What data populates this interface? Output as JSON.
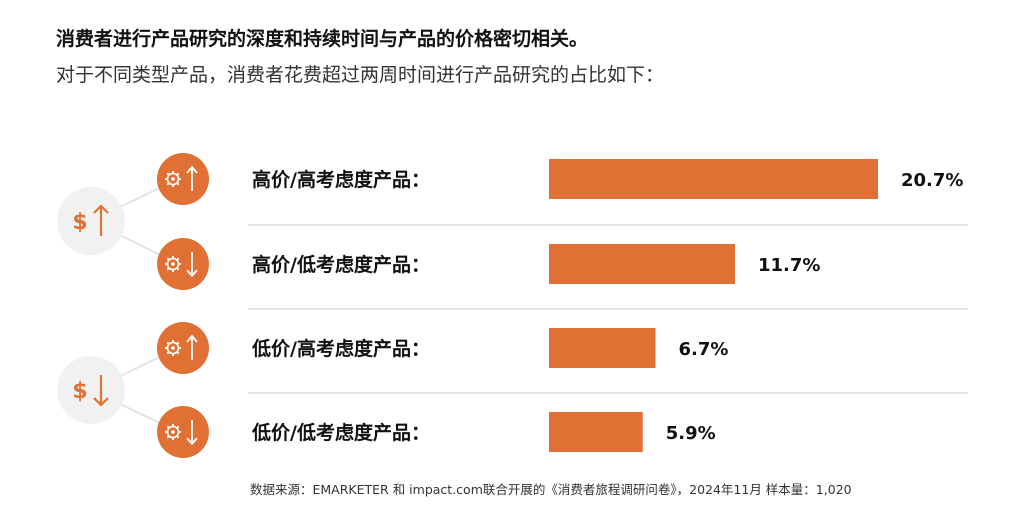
{
  "title": "消费者进行产品研究的深度和持续时间与产品的价格密切相关。",
  "subtitle": "对于不同类型产品，消费者花费超过两周时间进行产品研究的占比如下：",
  "source": "数据来源：EMARKETER 和 impact.com联合开展的《消费者旅程调研问卷》，2024年11月 样本量：1,020",
  "colors": {
    "bar": "#e07033",
    "accent": "#e07033",
    "icon_bg": "#f1f1f1",
    "separator": "#d9d9d9"
  },
  "icons": {
    "high_price": "dollar-up-arrow-icon",
    "low_price": "dollar-down-arrow-icon",
    "high_consideration": "gear-up-arrow-icon",
    "low_consideration": "gear-down-arrow-icon"
  },
  "chart_data": {
    "type": "bar",
    "orientation": "horizontal",
    "categories": [
      "高价/高考虑度产品：",
      "高价/低考虑度产品：",
      "低价/高考虑度产品：",
      "低价/低考虑度产品："
    ],
    "values": [
      20.7,
      11.7,
      6.7,
      5.9
    ],
    "value_labels": [
      "20.7%",
      "11.7%",
      "6.7%",
      "5.9%"
    ],
    "unit": "%",
    "xlim": [
      0,
      20.7
    ],
    "grid": false,
    "legend": "none"
  }
}
